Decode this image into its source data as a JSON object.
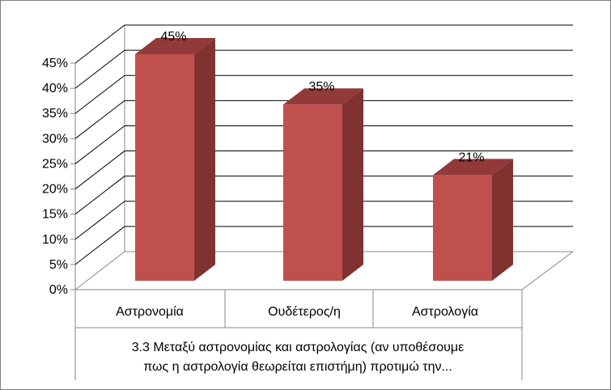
{
  "chart_data": {
    "type": "bar",
    "categories": [
      "Αστρονομία",
      "Ουδέτερος/η",
      "Αστρολογία"
    ],
    "values": [
      45,
      35,
      21
    ],
    "data_labels": [
      "45%",
      "35%",
      "21%"
    ],
    "ylim": [
      0,
      45
    ],
    "y_ticks": [
      "0%",
      "5%",
      "10%",
      "15%",
      "20%",
      "25%",
      "30%",
      "35%",
      "40%",
      "45%"
    ],
    "xlabel": "3.3 Μεταξύ αστρονομίας και αστρολογίας (αν υποθέσουμε πως η αστρολογία θεωρείται επιστήμη) προτιμώ την...",
    "xlabel_lines": [
      "3.3 Μεταξύ αστρονομίας και αστρολογίας (αν υποθέσουμε",
      "πως η αστρολογία θεωρείται επιστήμη) προτιμώ την..."
    ],
    "style": "3d-clustered-column",
    "grid": true,
    "legend": "none",
    "colors": {
      "bar_front": "#c0504d",
      "bar_side": "#7f3230",
      "bar_top": "#92393a",
      "grid": "#000000"
    }
  }
}
